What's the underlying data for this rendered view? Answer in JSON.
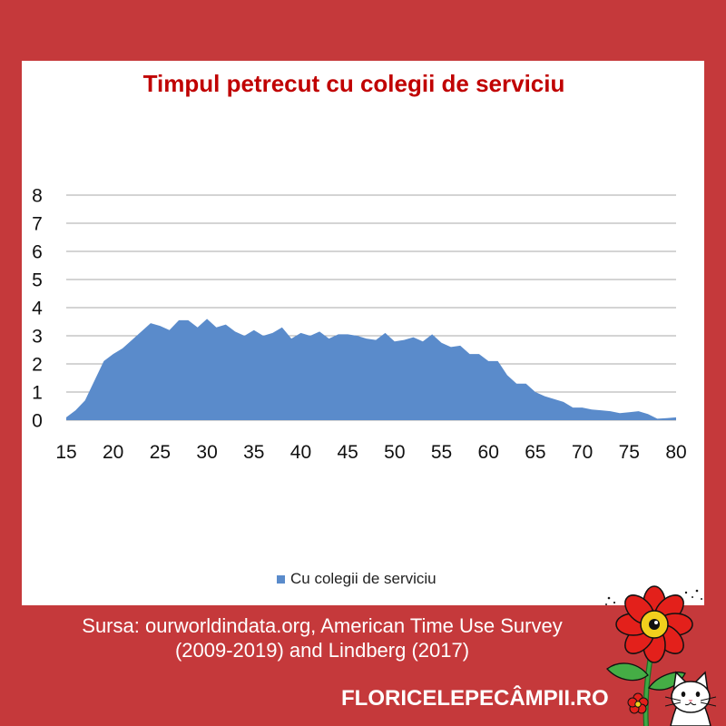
{
  "colors": {
    "page_background": "#c5393b",
    "panel_background": "#ffffff",
    "title": "#c00000",
    "gridline": "#a9a9a9",
    "tick_text": "#111111",
    "footer_text": "#ffffff"
  },
  "chart_data": {
    "type": "area",
    "title": "Timpul petrecut cu colegii de serviciu",
    "x": [
      15,
      16,
      17,
      18,
      19,
      20,
      21,
      22,
      23,
      24,
      25,
      26,
      27,
      28,
      29,
      30,
      31,
      32,
      33,
      34,
      35,
      36,
      37,
      38,
      39,
      40,
      41,
      42,
      43,
      44,
      45,
      46,
      47,
      48,
      49,
      50,
      51,
      52,
      53,
      54,
      55,
      56,
      57,
      58,
      59,
      60,
      61,
      62,
      63,
      64,
      65,
      66,
      67,
      68,
      69,
      70,
      71,
      72,
      73,
      74,
      75,
      76,
      77,
      78,
      79,
      80
    ],
    "series": [
      {
        "name": "Cu colegii de serviciu",
        "color": "#5a8bcb",
        "values": [
          0.1,
          0.35,
          0.7,
          1.4,
          2.1,
          2.35,
          2.55,
          2.85,
          3.15,
          3.45,
          3.35,
          3.2,
          3.55,
          3.55,
          3.3,
          3.6,
          3.3,
          3.4,
          3.15,
          3.0,
          3.2,
          3.0,
          3.1,
          3.3,
          2.9,
          3.1,
          3.0,
          3.15,
          2.9,
          3.05,
          3.05,
          3.0,
          2.9,
          2.85,
          3.1,
          2.8,
          2.85,
          2.95,
          2.8,
          3.05,
          2.75,
          2.6,
          2.65,
          2.35,
          2.35,
          2.1,
          2.1,
          1.6,
          1.3,
          1.3,
          1.0,
          0.85,
          0.75,
          0.65,
          0.45,
          0.45,
          0.38,
          0.35,
          0.32,
          0.25,
          0.28,
          0.32,
          0.22,
          0.05,
          0.07,
          0.1
        ]
      }
    ],
    "xticks": [
      15,
      20,
      25,
      30,
      35,
      40,
      45,
      50,
      55,
      60,
      65,
      70,
      75,
      80
    ],
    "yticks": [
      0,
      1,
      2,
      3,
      4,
      5,
      6,
      7,
      8
    ],
    "xlim": [
      15,
      80
    ],
    "ylim": [
      0,
      8
    ],
    "grid": "horizontal",
    "legend": "bottom"
  },
  "source": {
    "line1": "Sursa: ourworldindata.org, American Time Use Survey",
    "line2": "(2009-2019) and Lindberg (2017)"
  },
  "brand": {
    "site": "FLORICELEPECÂMPII.RO",
    "logo_icon": "flower-with-cat-icon"
  }
}
